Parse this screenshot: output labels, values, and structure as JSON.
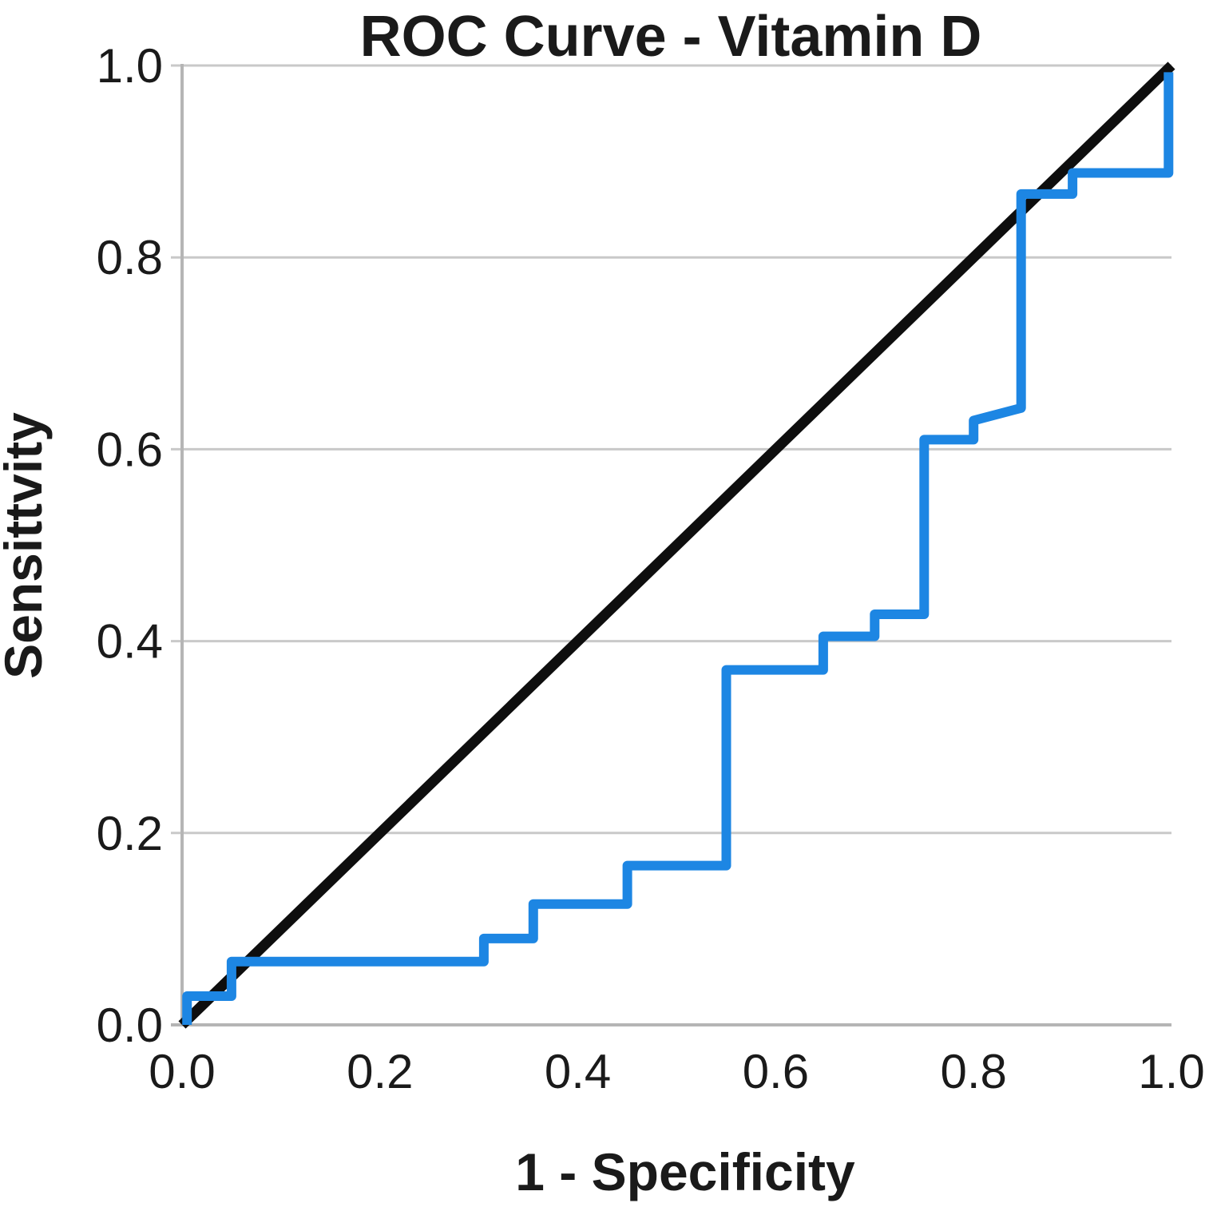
{
  "chart": {
    "title": "ROC Curve - Vitamin D",
    "xlabel": "1 - Specificity",
    "ylabel": "Sensittvity"
  },
  "chart_data": {
    "type": "line",
    "title": "ROC Curve - Vitamin D",
    "xlabel": "1 - Specificity",
    "ylabel": "Sensittvity",
    "xlim": [
      0.0,
      1.0
    ],
    "ylim": [
      0.0,
      1.0
    ],
    "x_ticks": [
      0.0,
      0.2,
      0.4,
      0.6,
      0.8,
      1.0
    ],
    "y_ticks": [
      0.0,
      0.2,
      0.4,
      0.6,
      0.8,
      1.0
    ],
    "x_tick_labels": [
      "0.0",
      "0.2",
      "0.4",
      "0.6",
      "0.8",
      "1.0"
    ],
    "y_tick_labels": [
      "0.0",
      "0.2",
      "0.4",
      "0.6",
      "0.8",
      "1.0"
    ],
    "grid": "horizontal-only",
    "legend": "none",
    "series": [
      {
        "name": "ROC curve (Vitamin D)",
        "style": "step",
        "color": "#1d86e3",
        "points": [
          [
            0.005,
            0.0
          ],
          [
            0.005,
            0.03
          ],
          [
            0.05,
            0.03
          ],
          [
            0.05,
            0.066
          ],
          [
            0.305,
            0.066
          ],
          [
            0.305,
            0.09
          ],
          [
            0.355,
            0.09
          ],
          [
            0.355,
            0.126
          ],
          [
            0.45,
            0.126
          ],
          [
            0.45,
            0.166
          ],
          [
            0.55,
            0.166
          ],
          [
            0.55,
            0.37
          ],
          [
            0.648,
            0.37
          ],
          [
            0.648,
            0.405
          ],
          [
            0.7,
            0.405
          ],
          [
            0.7,
            0.428
          ],
          [
            0.75,
            0.428
          ],
          [
            0.75,
            0.61
          ],
          [
            0.8,
            0.61
          ],
          [
            0.8,
            0.63
          ],
          [
            0.848,
            0.643
          ],
          [
            0.848,
            0.866
          ],
          [
            0.9,
            0.866
          ],
          [
            0.9,
            0.888
          ],
          [
            0.997,
            0.888
          ],
          [
            0.997,
            0.993
          ]
        ]
      },
      {
        "name": "Reference diagonal",
        "style": "line",
        "color": "#0e0e0e",
        "points": [
          [
            0.0,
            0.0
          ],
          [
            1.0,
            1.0
          ]
        ]
      }
    ],
    "colors": {
      "curve": "#1d86e3",
      "reference": "#0e0e0e",
      "grid": "#c9c9c9",
      "axis": "#b5b5b5",
      "text": "#1a1a1a",
      "background": "#ffffff"
    }
  }
}
